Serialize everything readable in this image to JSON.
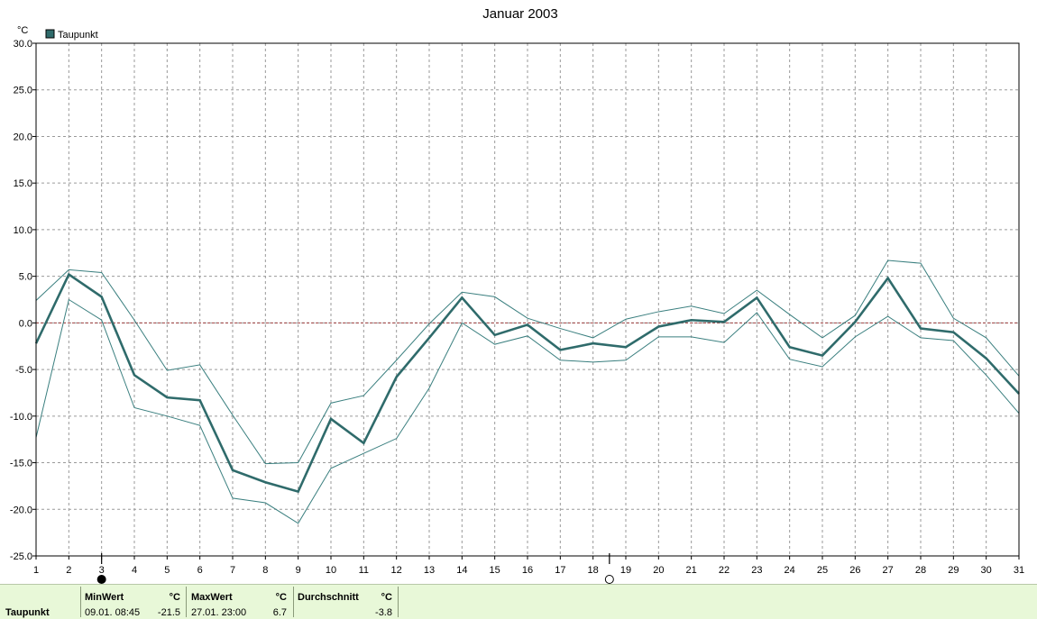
{
  "chart_data": {
    "type": "line",
    "title": "Januar 2003",
    "ylabel": "°C",
    "ylim": [
      -25,
      30
    ],
    "yticks": [
      "30.0",
      "25.0",
      "20.0",
      "15.0",
      "10.0",
      "5.0",
      "0.0",
      "-5.0",
      "-10.0",
      "-15.0",
      "-20.0",
      "-25.0"
    ],
    "x": [
      1,
      2,
      3,
      4,
      5,
      6,
      7,
      8,
      9,
      10,
      11,
      12,
      13,
      14,
      15,
      16,
      17,
      18,
      19,
      20,
      21,
      22,
      23,
      24,
      25,
      26,
      27,
      28,
      29,
      30,
      31
    ],
    "grid": true,
    "legend": {
      "position": "top-left",
      "entries": [
        "Taupunkt"
      ]
    },
    "zero_line": true,
    "series": [
      {
        "name": "Taupunkt",
        "role": "mean",
        "color": "#2f6b6b",
        "values": [
          -2.2,
          5.2,
          2.8,
          -5.6,
          -8.0,
          -8.3,
          -15.8,
          -17.1,
          -18.1,
          -10.3,
          -12.9,
          -5.8,
          -1.6,
          2.7,
          -1.3,
          -0.2,
          -2.9,
          -2.2,
          -2.6,
          -0.4,
          0.3,
          0.1,
          2.7,
          -2.6,
          -3.5,
          0.1,
          4.8,
          -0.6,
          -1.0,
          -3.8,
          -7.6
        ]
      },
      {
        "role": "max",
        "color": "#3a7f7f",
        "values": [
          2.4,
          5.7,
          5.4,
          0.3,
          -5.1,
          -4.5,
          -9.9,
          -15.1,
          -15.0,
          -8.6,
          -7.8,
          -4.0,
          -0.1,
          3.3,
          2.8,
          0.5,
          -0.6,
          -1.6,
          0.4,
          1.2,
          1.8,
          1.0,
          3.5,
          0.9,
          -1.6,
          0.8,
          6.7,
          6.4,
          0.5,
          -1.6,
          -5.7
        ]
      },
      {
        "role": "min",
        "color": "#3a7f7f",
        "values": [
          -12.3,
          2.5,
          0.3,
          -9.1,
          -10.0,
          -11.0,
          -18.8,
          -19.3,
          -21.5,
          -15.6,
          -14.0,
          -12.4,
          -7.0,
          0.0,
          -2.3,
          -1.4,
          -4.0,
          -4.2,
          -4.0,
          -1.5,
          -1.5,
          -2.1,
          1.1,
          -3.9,
          -4.7,
          -1.5,
          0.7,
          -1.6,
          -1.9,
          -5.6,
          -9.7
        ]
      }
    ],
    "markers": {
      "min_day": 3,
      "max_day": 18.5
    }
  },
  "footer": {
    "series_label": "Taupunkt",
    "min": {
      "header": "MinWert",
      "unit": "°C",
      "when": "09.01.  08:45",
      "value": "-21.5"
    },
    "max": {
      "header": "MaxWert",
      "unit": "°C",
      "when": "27.01.  23:00",
      "value": "6.7"
    },
    "avg": {
      "header": "Durchschnitt",
      "unit": "°C",
      "value": "-3.8"
    }
  },
  "colors": {
    "grid": "#9a9a9a",
    "zero_line": "#a04040",
    "footer_bg": "#e8f8d8"
  }
}
